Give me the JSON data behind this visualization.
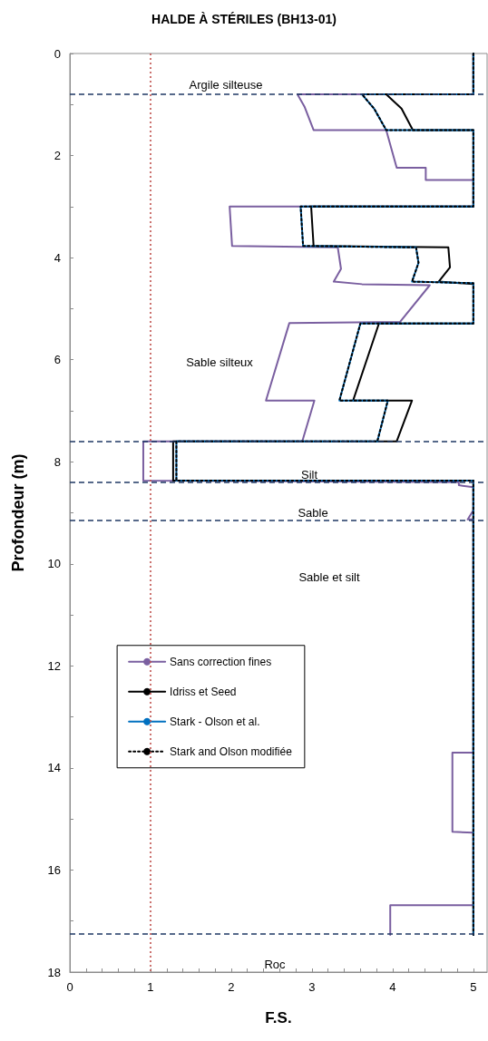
{
  "chart_data": {
    "type": "line",
    "title": "HALDE À STÉRILES (BH13-01)",
    "xlabel": "F.S.",
    "ylabel": "Profondeur (m)",
    "xlim": [
      0,
      5.17
    ],
    "ylim": [
      18,
      0
    ],
    "xticks": [
      0,
      {
        "value": 0.2,
        "label": null
      },
      {
        "value": 0.4,
        "label": null
      },
      {
        "value": 0.6,
        "label": null
      },
      {
        "value": 0.8,
        "label": null
      },
      1,
      {
        "value": 1.2,
        "label": null
      },
      {
        "value": 1.4,
        "label": null
      },
      {
        "value": 1.6,
        "label": null
      },
      {
        "value": 1.8,
        "label": null
      },
      2,
      {
        "value": 2.2,
        "label": null
      },
      {
        "value": 2.4,
        "label": null
      },
      {
        "value": 2.6,
        "label": null
      },
      {
        "value": 2.8,
        "label": null
      },
      3,
      {
        "value": 3.2,
        "label": null
      },
      {
        "value": 3.4,
        "label": null
      },
      {
        "value": 3.6,
        "label": null
      },
      {
        "value": 3.8,
        "label": null
      },
      4,
      {
        "value": 4.2,
        "label": null
      },
      {
        "value": 4.4,
        "label": null
      },
      {
        "value": 4.6,
        "label": null
      },
      {
        "value": 4.8,
        "label": null
      },
      5
    ],
    "yticks": [
      0,
      {
        "value": 1,
        "label": null
      },
      2,
      {
        "value": 3,
        "label": null
      },
      4,
      {
        "value": 5,
        "label": null
      },
      6,
      {
        "value": 7,
        "label": null
      },
      8,
      {
        "value": 9,
        "label": null
      },
      10,
      {
        "value": 11,
        "label": null
      },
      12,
      {
        "value": 13,
        "label": null
      },
      14,
      {
        "value": 15,
        "label": null
      },
      16,
      {
        "value": 17,
        "label": null
      },
      18
    ],
    "grid": false,
    "legend": "center",
    "marker": "none",
    "series": [
      {
        "name": "Sans correction fines",
        "color": "#7a5fa0",
        "line_style": "solid",
        "x": [
          5,
          5,
          2.82,
          2.91,
          3.02,
          3.92,
          4.05,
          4.41,
          4.41,
          5,
          5,
          1.98,
          2.01,
          3.32,
          3.36,
          3.27,
          3.62,
          4.46,
          4.09,
          2.72,
          2.43,
          3.03,
          2.88,
          0.91,
          0.91,
          4.82,
          4.82,
          5,
          5,
          4.93,
          5,
          5,
          4.74,
          4.74,
          5,
          5,
          3.97,
          3.97
        ],
        "values": [
          0,
          0.8,
          0.8,
          1.05,
          1.5,
          1.5,
          2.24,
          2.24,
          2.48,
          2.48,
          3.0,
          3.0,
          3.77,
          3.8,
          4.22,
          4.47,
          4.52,
          4.54,
          5.26,
          5.28,
          6.8,
          6.8,
          7.6,
          7.6,
          8.37,
          8.4,
          8.46,
          8.5,
          8.95,
          9.13,
          9.13,
          13.7,
          13.7,
          15.25,
          15.27,
          16.69,
          16.69,
          17.27
        ]
      },
      {
        "name": "Idriss et Seed",
        "color": "#000000",
        "line_style": "solid",
        "x": [
          5,
          5,
          3.92,
          4.11,
          4.24,
          4.25,
          5,
          5,
          2.99,
          3.02,
          4.69,
          4.71,
          4.57,
          5,
          5,
          3.83,
          3.51,
          4.24,
          4.05,
          1.28,
          1.28,
          5,
          5
        ],
        "values": [
          0,
          0.8,
          0.8,
          1.08,
          1.47,
          1.5,
          1.5,
          3.0,
          3.0,
          3.77,
          3.8,
          4.19,
          4.47,
          4.52,
          5.29,
          5.29,
          6.8,
          6.8,
          7.6,
          7.6,
          8.37,
          8.37,
          17.27
        ]
      },
      {
        "name": "Stark - Olson et al.",
        "color": "#0070c0",
        "line_style": "solid",
        "x": [
          5,
          5,
          3.62,
          3.77,
          3.92,
          5,
          5,
          2.86,
          2.89,
          4.29,
          4.32,
          4.24,
          5,
          5,
          3.6,
          3.34,
          3.94,
          3.81,
          1.32,
          1.32,
          5,
          5
        ],
        "values": [
          0,
          0.8,
          0.8,
          1.08,
          1.5,
          1.5,
          3.0,
          3.0,
          3.77,
          3.8,
          4.1,
          4.47,
          4.5,
          5.29,
          5.29,
          6.8,
          6.8,
          7.6,
          7.6,
          8.37,
          8.37,
          17.27
        ]
      },
      {
        "name": "Stark and Olson modifiée",
        "color": "#000000",
        "line_style": "dotted",
        "x": [
          5,
          5,
          3.62,
          3.77,
          3.92,
          5,
          5,
          2.86,
          2.89,
          4.29,
          4.32,
          4.24,
          5,
          5,
          3.6,
          3.34,
          3.94,
          3.81,
          1.32,
          1.32,
          5,
          5
        ],
        "values": [
          0,
          0.8,
          0.8,
          1.08,
          1.5,
          1.5,
          3.0,
          3.0,
          3.77,
          3.8,
          4.1,
          4.47,
          4.5,
          5.29,
          5.29,
          6.8,
          6.8,
          7.6,
          7.6,
          8.37,
          8.37,
          17.27
        ]
      }
    ],
    "ref_lines": [
      {
        "axis": "x",
        "value": 1,
        "color": "#c0504d",
        "line_style": "dotted"
      },
      {
        "axis": "y",
        "value": 0.8,
        "color": "#1f3864",
        "line_style": "dashed"
      },
      {
        "axis": "y",
        "value": 7.6,
        "color": "#1f3864",
        "line_style": "dashed"
      },
      {
        "axis": "y",
        "value": 8.4,
        "color": "#1f3864",
        "line_style": "dashed"
      },
      {
        "axis": "y",
        "value": 9.15,
        "color": "#1f3864",
        "line_style": "dashed"
      },
      {
        "axis": "y",
        "value": 17.25,
        "color": "#1f3864",
        "line_style": "dashed"
      }
    ],
    "annotations": [
      "Argile silteuse",
      "Sable silteux",
      "Silt",
      "Sable",
      "Sable et silt",
      "Roc"
    ]
  }
}
